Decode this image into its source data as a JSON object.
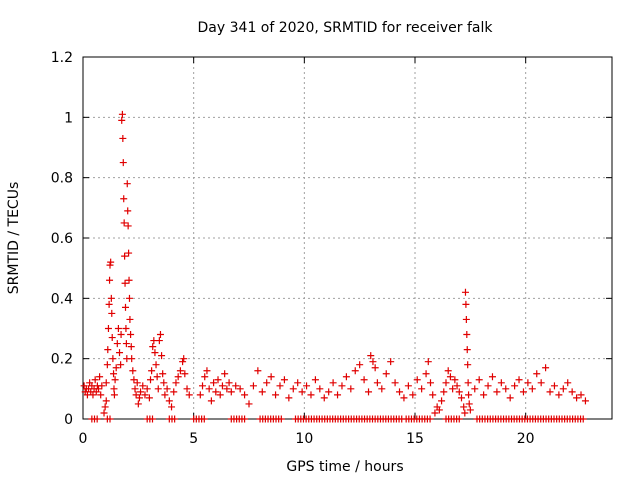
{
  "chart_data": {
    "type": "scatter",
    "title": "Day 341 of 2020, SRMTID for receiver falk",
    "xlabel": "GPS time / hours",
    "ylabel": "SRMTID / TECUs",
    "xlim": [
      0,
      23.9
    ],
    "ylim": [
      0,
      1.2
    ],
    "xticks": [
      0,
      5,
      10,
      15,
      20
    ],
    "xtick_labels": [
      "0",
      "5",
      "10",
      "15",
      "20"
    ],
    "yticks": [
      0,
      0.2,
      0.4,
      0.6,
      0.8,
      1,
      1.2
    ],
    "ytick_labels": [
      "0",
      "0.2",
      "0.4",
      "0.6",
      "0.8",
      "1",
      "1.2"
    ],
    "grid": true,
    "legend": "none",
    "marker": "plus",
    "color": "#e00000",
    "series": [
      {
        "name": "falk",
        "points": [
          [
            0.05,
            0.11
          ],
          [
            0.1,
            0.09
          ],
          [
            0.15,
            0.1
          ],
          [
            0.2,
            0.08
          ],
          [
            0.25,
            0.1
          ],
          [
            0.3,
            0.12
          ],
          [
            0.35,
            0.09
          ],
          [
            0.4,
            0.11
          ],
          [
            0.45,
            0.08
          ],
          [
            0.5,
            0.1
          ],
          [
            0.55,
            0.13
          ],
          [
            0.6,
            0.09
          ],
          [
            0.65,
            0.11
          ],
          [
            0.7,
            0.1
          ],
          [
            0.75,
            0.14
          ],
          [
            0.8,
            0.08
          ],
          [
            0.85,
            0.11
          ],
          [
            0.95,
            0.02
          ],
          [
            1.0,
            0.04
          ],
          [
            1.05,
            0.06
          ],
          [
            1.05,
            0.12
          ],
          [
            1.1,
            0.18
          ],
          [
            1.12,
            0.23
          ],
          [
            1.15,
            0.3
          ],
          [
            1.18,
            0.38
          ],
          [
            1.2,
            0.46
          ],
          [
            1.22,
            0.51
          ],
          [
            1.25,
            0.52
          ],
          [
            1.28,
            0.4
          ],
          [
            1.3,
            0.35
          ],
          [
            1.32,
            0.27
          ],
          [
            1.35,
            0.2
          ],
          [
            1.38,
            0.15
          ],
          [
            1.4,
            0.1
          ],
          [
            1.42,
            0.08
          ],
          [
            1.45,
            0.13
          ],
          [
            1.5,
            0.17
          ],
          [
            1.55,
            0.25
          ],
          [
            1.6,
            0.3
          ],
          [
            1.65,
            0.22
          ],
          [
            1.7,
            0.18
          ],
          [
            1.72,
            0.28
          ],
          [
            1.75,
            0.99
          ],
          [
            1.78,
            1.01
          ],
          [
            1.8,
            0.93
          ],
          [
            1.82,
            0.85
          ],
          [
            1.84,
            0.73
          ],
          [
            1.86,
            0.65
          ],
          [
            1.88,
            0.54
          ],
          [
            1.9,
            0.45
          ],
          [
            1.92,
            0.37
          ],
          [
            1.94,
            0.3
          ],
          [
            1.96,
            0.25
          ],
          [
            1.98,
            0.2
          ],
          [
            2.0,
            0.78
          ],
          [
            2.02,
            0.69
          ],
          [
            2.04,
            0.64
          ],
          [
            2.06,
            0.55
          ],
          [
            2.08,
            0.46
          ],
          [
            2.1,
            0.4
          ],
          [
            2.12,
            0.33
          ],
          [
            2.15,
            0.28
          ],
          [
            2.18,
            0.24
          ],
          [
            2.2,
            0.2
          ],
          [
            2.25,
            0.16
          ],
          [
            2.3,
            0.13
          ],
          [
            2.35,
            0.1
          ],
          [
            2.4,
            0.08
          ],
          [
            2.45,
            0.12
          ],
          [
            2.5,
            0.05
          ],
          [
            2.55,
            0.07
          ],
          [
            2.6,
            0.09
          ],
          [
            2.7,
            0.11
          ],
          [
            2.8,
            0.08
          ],
          [
            2.9,
            0.1
          ],
          [
            3.0,
            0.07
          ],
          [
            3.05,
            0.13
          ],
          [
            3.1,
            0.16
          ],
          [
            3.15,
            0.24
          ],
          [
            3.2,
            0.26
          ],
          [
            3.25,
            0.22
          ],
          [
            3.3,
            0.18
          ],
          [
            3.35,
            0.14
          ],
          [
            3.4,
            0.1
          ],
          [
            3.45,
            0.26
          ],
          [
            3.5,
            0.28
          ],
          [
            3.55,
            0.21
          ],
          [
            3.6,
            0.15
          ],
          [
            3.65,
            0.12
          ],
          [
            3.7,
            0.08
          ],
          [
            3.8,
            0.1
          ],
          [
            3.9,
            0.06
          ],
          [
            4.0,
            0.04
          ],
          [
            4.1,
            0.09
          ],
          [
            4.2,
            0.12
          ],
          [
            4.3,
            0.14
          ],
          [
            4.4,
            0.16
          ],
          [
            4.5,
            0.19
          ],
          [
            4.55,
            0.2
          ],
          [
            4.6,
            0.15
          ],
          [
            4.7,
            0.1
          ],
          [
            4.8,
            0.08
          ],
          [
            5.3,
            0.08
          ],
          [
            5.4,
            0.11
          ],
          [
            5.5,
            0.14
          ],
          [
            5.6,
            0.16
          ],
          [
            5.7,
            0.1
          ],
          [
            5.8,
            0.06
          ],
          [
            5.9,
            0.12
          ],
          [
            6.0,
            0.09
          ],
          [
            6.1,
            0.13
          ],
          [
            6.2,
            0.08
          ],
          [
            6.3,
            0.11
          ],
          [
            6.4,
            0.15
          ],
          [
            6.5,
            0.1
          ],
          [
            6.6,
            0.12
          ],
          [
            6.7,
            0.09
          ],
          [
            6.9,
            0.11
          ],
          [
            7.1,
            0.1
          ],
          [
            7.3,
            0.08
          ],
          [
            7.5,
            0.05
          ],
          [
            7.7,
            0.11
          ],
          [
            7.9,
            0.16
          ],
          [
            8.1,
            0.09
          ],
          [
            8.3,
            0.12
          ],
          [
            8.5,
            0.14
          ],
          [
            8.7,
            0.08
          ],
          [
            8.9,
            0.11
          ],
          [
            9.1,
            0.13
          ],
          [
            9.3,
            0.07
          ],
          [
            9.5,
            0.1
          ],
          [
            9.7,
            0.12
          ],
          [
            9.9,
            0.09
          ],
          [
            10.1,
            0.11
          ],
          [
            10.3,
            0.08
          ],
          [
            10.5,
            0.13
          ],
          [
            10.7,
            0.1
          ],
          [
            10.9,
            0.07
          ],
          [
            11.1,
            0.09
          ],
          [
            11.3,
            0.12
          ],
          [
            11.5,
            0.08
          ],
          [
            11.7,
            0.11
          ],
          [
            11.9,
            0.14
          ],
          [
            12.1,
            0.1
          ],
          [
            12.3,
            0.16
          ],
          [
            12.5,
            0.18
          ],
          [
            12.7,
            0.13
          ],
          [
            12.9,
            0.09
          ],
          [
            13.0,
            0.21
          ],
          [
            13.1,
            0.19
          ],
          [
            13.2,
            0.17
          ],
          [
            13.3,
            0.12
          ],
          [
            13.5,
            0.1
          ],
          [
            13.7,
            0.15
          ],
          [
            13.9,
            0.19
          ],
          [
            14.1,
            0.12
          ],
          [
            14.3,
            0.09
          ],
          [
            14.5,
            0.07
          ],
          [
            14.7,
            0.11
          ],
          [
            14.9,
            0.08
          ],
          [
            15.1,
            0.13
          ],
          [
            15.3,
            0.1
          ],
          [
            15.5,
            0.15
          ],
          [
            15.6,
            0.19
          ],
          [
            15.7,
            0.12
          ],
          [
            15.8,
            0.08
          ],
          [
            15.9,
            0.02
          ],
          [
            16.0,
            0.04
          ],
          [
            16.1,
            0.03
          ],
          [
            16.2,
            0.06
          ],
          [
            16.3,
            0.09
          ],
          [
            16.4,
            0.12
          ],
          [
            16.5,
            0.16
          ],
          [
            16.6,
            0.14
          ],
          [
            16.7,
            0.1
          ],
          [
            16.8,
            0.13
          ],
          [
            16.9,
            0.11
          ],
          [
            17.0,
            0.09
          ],
          [
            17.1,
            0.07
          ],
          [
            17.2,
            0.04
          ],
          [
            17.25,
            0.02
          ],
          [
            17.28,
            0.42
          ],
          [
            17.3,
            0.38
          ],
          [
            17.32,
            0.33
          ],
          [
            17.34,
            0.28
          ],
          [
            17.36,
            0.23
          ],
          [
            17.38,
            0.18
          ],
          [
            17.4,
            0.12
          ],
          [
            17.42,
            0.08
          ],
          [
            17.45,
            0.05
          ],
          [
            17.5,
            0.03
          ],
          [
            17.7,
            0.1
          ],
          [
            17.9,
            0.13
          ],
          [
            18.1,
            0.08
          ],
          [
            18.3,
            0.11
          ],
          [
            18.5,
            0.14
          ],
          [
            18.7,
            0.09
          ],
          [
            18.9,
            0.12
          ],
          [
            19.1,
            0.1
          ],
          [
            19.3,
            0.07
          ],
          [
            19.5,
            0.11
          ],
          [
            19.7,
            0.13
          ],
          [
            19.9,
            0.09
          ],
          [
            20.1,
            0.12
          ],
          [
            20.3,
            0.1
          ],
          [
            20.5,
            0.15
          ],
          [
            20.7,
            0.12
          ],
          [
            20.9,
            0.17
          ],
          [
            21.1,
            0.09
          ],
          [
            21.3,
            0.11
          ],
          [
            21.5,
            0.08
          ],
          [
            21.7,
            0.1
          ],
          [
            21.9,
            0.12
          ],
          [
            22.1,
            0.09
          ],
          [
            22.3,
            0.07
          ],
          [
            22.5,
            0.08
          ],
          [
            22.7,
            0.06
          ]
        ]
      }
    ],
    "zero_rows": [
      [
        0.4,
        0.7
      ],
      [
        1.1,
        1.3
      ],
      [
        2.9,
        3.2
      ],
      [
        3.9,
        4.2
      ],
      [
        5.0,
        5.5
      ],
      [
        6.7,
        7.4
      ],
      [
        8.0,
        9.0
      ],
      [
        9.6,
        14.4
      ],
      [
        14.6,
        15.7
      ],
      [
        16.4,
        17.0
      ],
      [
        17.8,
        22.7
      ]
    ]
  }
}
